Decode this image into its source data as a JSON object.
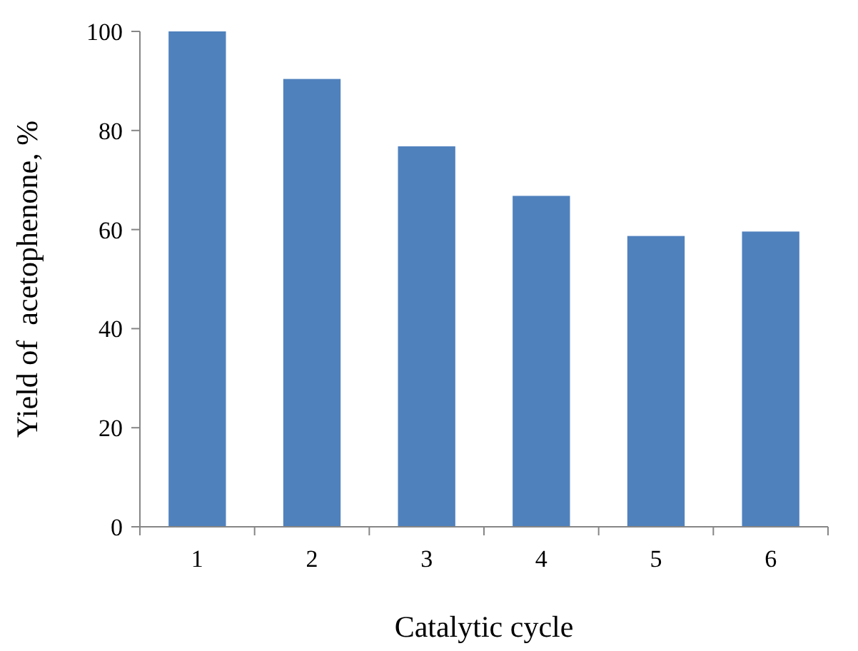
{
  "chart_data": {
    "type": "bar",
    "xlabel": "Catalytic cycle",
    "ylabel": "Yield of  acetophenone, %",
    "categories": [
      "1",
      "2",
      "3",
      "4",
      "5",
      "6"
    ],
    "values": [
      100,
      90.4,
      76.8,
      66.8,
      58.7,
      59.6
    ],
    "color": "#4f81bd",
    "ylim": [
      0,
      100
    ],
    "yticks": [
      0,
      20,
      40,
      60,
      80,
      100
    ],
    "grid": false
  }
}
